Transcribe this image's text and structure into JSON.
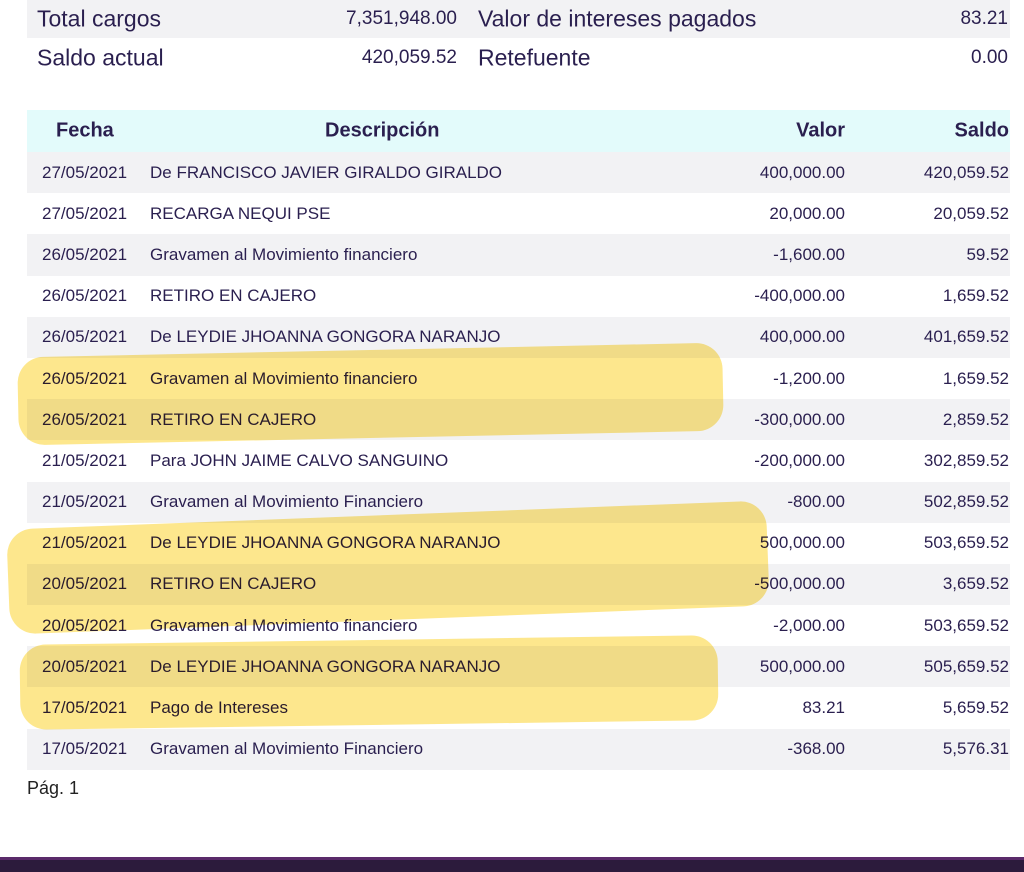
{
  "summary": {
    "rows": [
      {
        "label": "Total cargos",
        "value": "7,351,948.00",
        "label2": "Valor de intereses pagados",
        "value2": "83.21"
      },
      {
        "label": "Saldo actual",
        "value": "420,059.52",
        "label2": "Retefuente",
        "value2": "0.00"
      }
    ]
  },
  "table": {
    "headers": {
      "fecha": "Fecha",
      "descripcion": "Descripción",
      "valor": "Valor",
      "saldo": "Saldo"
    },
    "rows": [
      {
        "fecha": "27/05/2021",
        "descripcion": "De FRANCISCO JAVIER GIRALDO GIRALDO",
        "valor": "400,000.00",
        "saldo": "420,059.52"
      },
      {
        "fecha": "27/05/2021",
        "descripcion": "RECARGA NEQUI PSE",
        "valor": "20,000.00",
        "saldo": "20,059.52"
      },
      {
        "fecha": "26/05/2021",
        "descripcion": "Gravamen al Movimiento financiero",
        "valor": "-1,600.00",
        "saldo": "59.52"
      },
      {
        "fecha": "26/05/2021",
        "descripcion": "RETIRO EN CAJERO",
        "valor": "-400,000.00",
        "saldo": "1,659.52"
      },
      {
        "fecha": "26/05/2021",
        "descripcion": "De LEYDIE JHOANNA GONGORA NARANJO",
        "valor": "400,000.00",
        "saldo": "401,659.52"
      },
      {
        "fecha": "26/05/2021",
        "descripcion": "Gravamen al Movimiento financiero",
        "valor": "-1,200.00",
        "saldo": "1,659.52"
      },
      {
        "fecha": "26/05/2021",
        "descripcion": "RETIRO EN CAJERO",
        "valor": "-300,000.00",
        "saldo": "2,859.52"
      },
      {
        "fecha": "21/05/2021",
        "descripcion": "Para JOHN JAIME CALVO SANGUINO",
        "valor": "-200,000.00",
        "saldo": "302,859.52"
      },
      {
        "fecha": "21/05/2021",
        "descripcion": "Gravamen al Movimiento Financiero",
        "valor": "-800.00",
        "saldo": "502,859.52"
      },
      {
        "fecha": "21/05/2021",
        "descripcion": "De LEYDIE JHOANNA GONGORA NARANJO",
        "valor": "500,000.00",
        "saldo": "503,659.52"
      },
      {
        "fecha": "20/05/2021",
        "descripcion": "RETIRO EN CAJERO",
        "valor": "-500,000.00",
        "saldo": "3,659.52"
      },
      {
        "fecha": "20/05/2021",
        "descripcion": "Gravamen al Movimiento financiero",
        "valor": "-2,000.00",
        "saldo": "503,659.52"
      },
      {
        "fecha": "20/05/2021",
        "descripcion": "De LEYDIE JHOANNA GONGORA NARANJO",
        "valor": "500,000.00",
        "saldo": "505,659.52"
      },
      {
        "fecha": "17/05/2021",
        "descripcion": "Pago de Intereses",
        "valor": "83.21",
        "saldo": "5,659.52"
      },
      {
        "fecha": "17/05/2021",
        "descripcion": "Gravamen al Movimiento Financiero",
        "valor": "-368.00",
        "saldo": "5,576.31"
      }
    ]
  },
  "footer": {
    "page_label": "Pág. 1"
  },
  "colors": {
    "text": "#2a1f4f",
    "header_bg": "#e3fbfb",
    "row_shade": "#f2f2f4",
    "highlight": "#fcd63a",
    "bottom_bar": "#2c1b3c"
  }
}
